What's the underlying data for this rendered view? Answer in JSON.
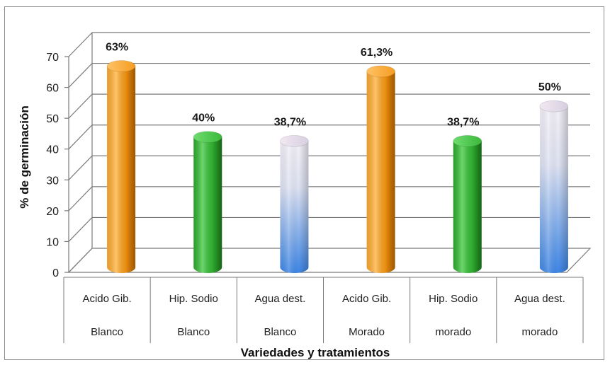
{
  "chart_data": {
    "type": "bar",
    "title": "",
    "xlabel": "Variedades y tratamientos",
    "ylabel": "% de germinación",
    "ylim": [
      0,
      70
    ],
    "yticks": [
      "0",
      "10",
      "20",
      "30",
      "40",
      "50",
      "60",
      "70"
    ],
    "categories": [
      [
        "Acido Gib.",
        "Blanco"
      ],
      [
        "Hip. Sodio",
        "Blanco"
      ],
      [
        "Agua dest.",
        "Blanco"
      ],
      [
        "Acido Gib.",
        "Morado"
      ],
      [
        "Hip. Sodio",
        "morado"
      ],
      [
        "Agua dest.",
        "morado"
      ]
    ],
    "values": [
      63,
      40,
      38.7,
      61.3,
      38.7,
      50
    ],
    "data_labels": [
      "63%",
      "40%",
      "38,7%",
      "61,3%",
      "38,7%",
      "50%"
    ],
    "bar_colors": [
      "orange",
      "green",
      "white-blue",
      "orange",
      "green",
      "white-blue"
    ],
    "grid": true,
    "legend": "none"
  },
  "colors": {
    "orange": "#f39a1b",
    "green": "#3cb93c",
    "blue": "#4f8fe6"
  }
}
